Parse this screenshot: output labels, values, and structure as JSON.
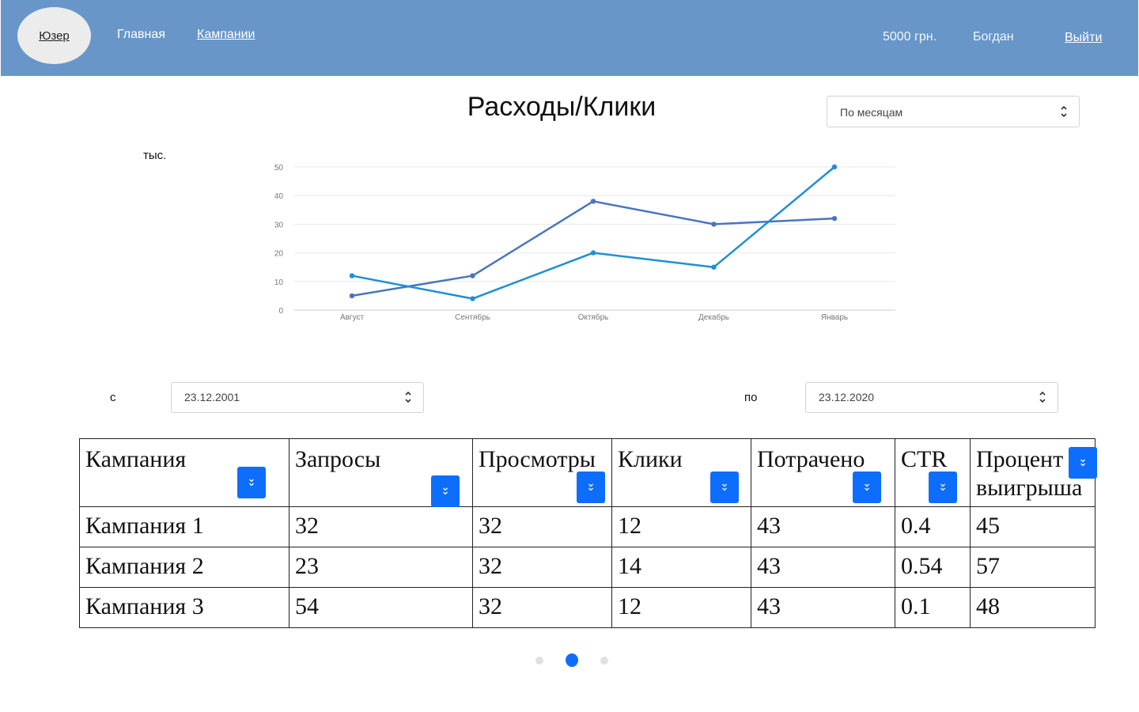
{
  "header": {
    "avatar_label": "Юзер",
    "nav": {
      "home": "Главная",
      "campaigns": "Кампании"
    },
    "balance": "5000 грн.",
    "username": "Богдан",
    "logout": "Выйти",
    "background_color": "#6896c9"
  },
  "title": "Расходы/Клики",
  "period_select": {
    "value": "По месяцам"
  },
  "chart": {
    "unit_label": "тыс."
  },
  "chart_data": {
    "type": "line",
    "categories": [
      "Август",
      "Сентябрь",
      "Октябрь",
      "Декабрь",
      "Январь"
    ],
    "series": [
      {
        "values": [
          5,
          12,
          38,
          30,
          32
        ],
        "color": "#4a74c0"
      },
      {
        "values": [
          12,
          4,
          20,
          15,
          50
        ],
        "color": "#1f8fd6"
      }
    ],
    "yticks": [
      0,
      10,
      20,
      30,
      40,
      50
    ],
    "ylim": [
      0,
      50
    ],
    "grid": true,
    "legend": false
  },
  "date_range": {
    "from_label": "с",
    "from_value": "23.12.2001",
    "to_label": "по",
    "to_value": "23.12.2020"
  },
  "table": {
    "headers": [
      "Кампания",
      "Запросы",
      "Просмотры",
      "Клики",
      "Потрачено",
      "CTR",
      "Процент выигрыша"
    ],
    "rows": [
      [
        "Кампания 1",
        "32",
        "32",
        "12",
        "43",
        "0.4",
        "45"
      ],
      [
        "Кампания 2",
        "23",
        "32",
        "14",
        "43",
        "0.54",
        "57"
      ],
      [
        "Кампания 3",
        "54",
        "32",
        "12",
        "43",
        "0.1",
        "48"
      ]
    ],
    "sort_button_color": "#0d6efd"
  },
  "pagination": {
    "pages": 3,
    "active": 2,
    "active_color": "#0d6efd"
  }
}
